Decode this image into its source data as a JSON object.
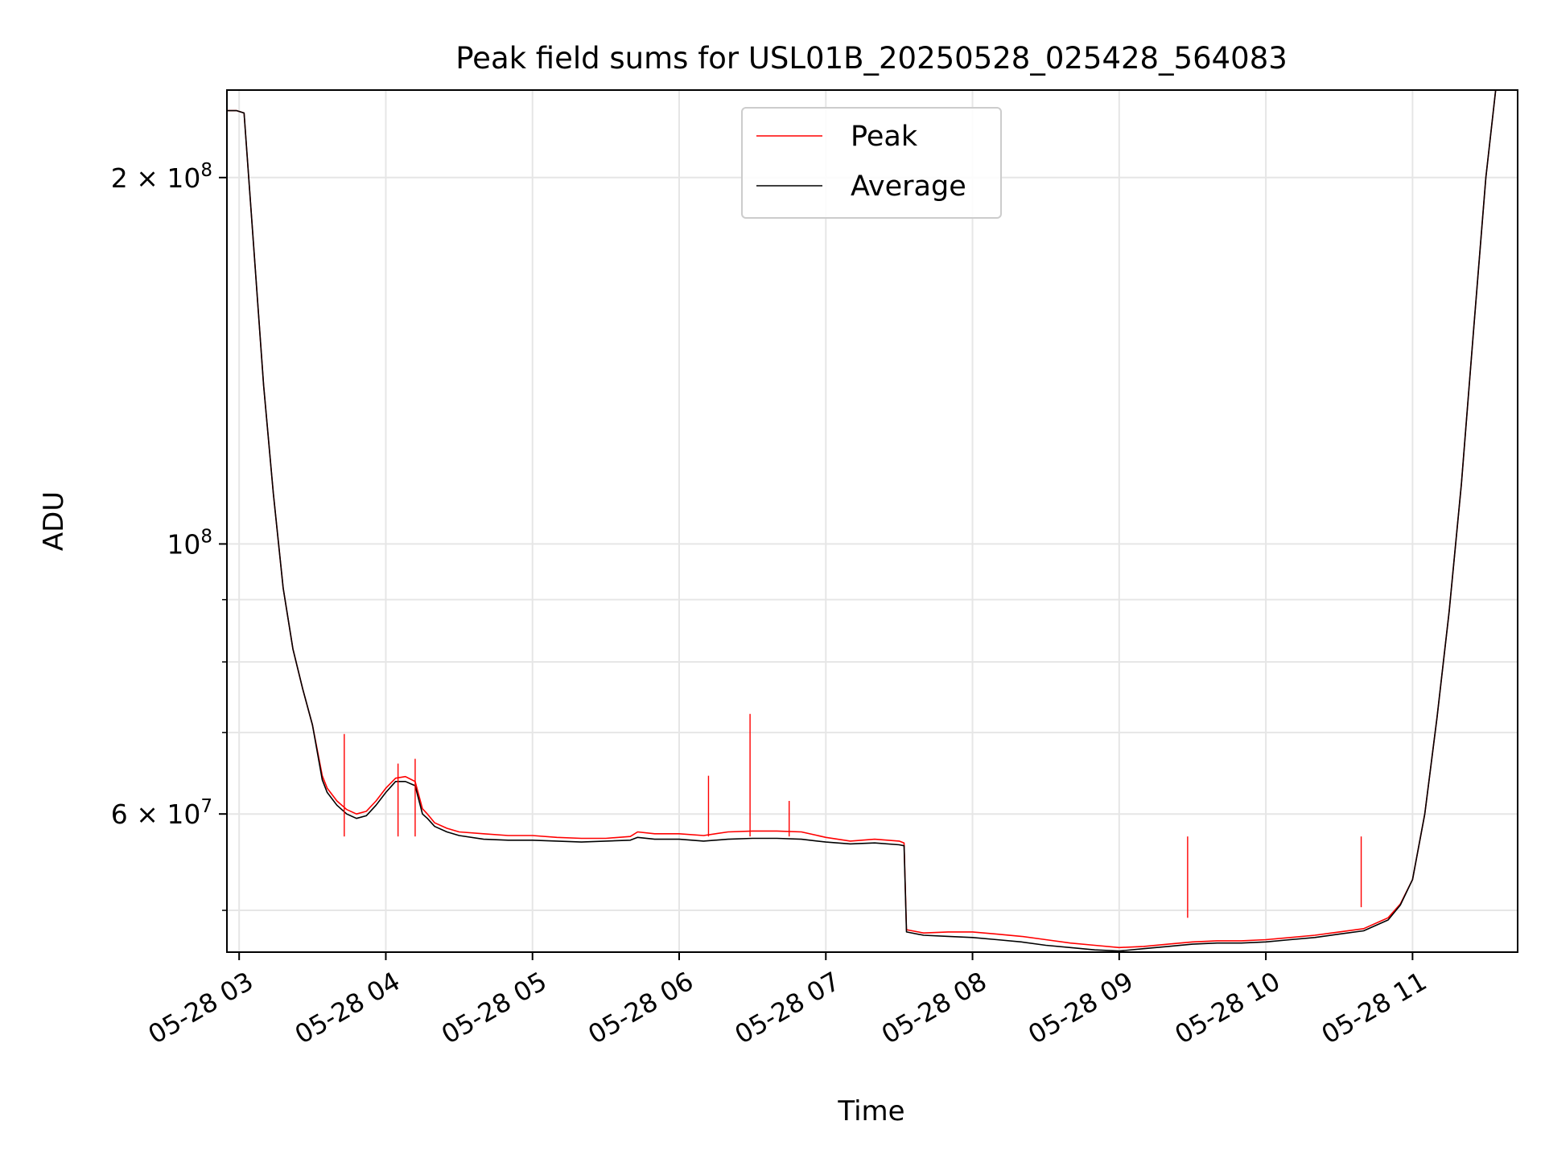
{
  "chart_data": {
    "type": "line",
    "title": "Peak field sums for USL01B_20250528_025428_564083",
    "xlabel": "Time",
    "ylabel": "ADU",
    "y_scale": "log",
    "grid": true,
    "legend_position": "upper center",
    "xlim": [
      "2025-05-28T02:55",
      "2025-05-28T11:43"
    ],
    "ylim": [
      46200000,
      236000000
    ],
    "x_ticks": [
      {
        "value": "2025-05-28T03:00",
        "label": "05-28 03"
      },
      {
        "value": "2025-05-28T04:00",
        "label": "05-28 04"
      },
      {
        "value": "2025-05-28T05:00",
        "label": "05-28 05"
      },
      {
        "value": "2025-05-28T06:00",
        "label": "05-28 06"
      },
      {
        "value": "2025-05-28T07:00",
        "label": "05-28 07"
      },
      {
        "value": "2025-05-28T08:00",
        "label": "05-28 08"
      },
      {
        "value": "2025-05-28T09:00",
        "label": "05-28 09"
      },
      {
        "value": "2025-05-28T10:00",
        "label": "05-28 10"
      },
      {
        "value": "2025-05-28T11:00",
        "label": "05-28 11"
      }
    ],
    "y_ticks": [
      {
        "value": 200000000,
        "mantissa": "2",
        "times": "×",
        "base": "10",
        "exp": "8"
      },
      {
        "value": 100000000,
        "mantissa": "",
        "times": "",
        "base": "10",
        "exp": "8"
      },
      {
        "value": 60000000,
        "mantissa": "6",
        "times": "×",
        "base": "10",
        "exp": "7"
      }
    ],
    "y_minor_ticks": [
      50000000,
      70000000,
      80000000,
      90000000
    ],
    "series": [
      {
        "name": "Peak",
        "color": "#ff0000",
        "x": [
          "2025-05-28T02:55",
          "2025-05-28T02:59",
          "2025-05-28T03:02",
          "2025-05-28T03:06",
          "2025-05-28T03:10",
          "2025-05-28T03:14",
          "2025-05-28T03:18",
          "2025-05-28T03:22",
          "2025-05-28T03:26",
          "2025-05-28T03:30",
          "2025-05-28T03:34",
          "2025-05-28T03:36",
          "2025-05-28T03:40",
          "2025-05-28T03:44",
          "2025-05-28T03:48",
          "2025-05-28T03:52",
          "2025-05-28T03:56",
          "2025-05-28T04:00",
          "2025-05-28T04:04",
          "2025-05-28T04:08",
          "2025-05-28T04:12",
          "2025-05-28T04:15",
          "2025-05-28T04:17",
          "2025-05-28T04:20",
          "2025-05-28T04:25",
          "2025-05-28T04:30",
          "2025-05-28T04:40",
          "2025-05-28T04:50",
          "2025-05-28T05:00",
          "2025-05-28T05:10",
          "2025-05-28T05:20",
          "2025-05-28T05:30",
          "2025-05-28T05:40",
          "2025-05-28T05:43",
          "2025-05-28T05:50",
          "2025-05-28T06:00",
          "2025-05-28T06:10",
          "2025-05-28T06:20",
          "2025-05-28T06:30",
          "2025-05-28T06:40",
          "2025-05-28T06:50",
          "2025-05-28T07:00",
          "2025-05-28T07:10",
          "2025-05-28T07:20",
          "2025-05-28T07:30",
          "2025-05-28T07:32",
          "2025-05-28T07:33",
          "2025-05-28T07:40",
          "2025-05-28T07:50",
          "2025-05-28T08:00",
          "2025-05-28T08:10",
          "2025-05-28T08:20",
          "2025-05-28T08:30",
          "2025-05-28T08:40",
          "2025-05-28T08:50",
          "2025-05-28T09:00",
          "2025-05-28T09:10",
          "2025-05-28T09:20",
          "2025-05-28T09:30",
          "2025-05-28T09:40",
          "2025-05-28T09:50",
          "2025-05-28T10:00",
          "2025-05-28T10:10",
          "2025-05-28T10:20",
          "2025-05-28T10:30",
          "2025-05-28T10:40",
          "2025-05-28T10:50",
          "2025-05-28T10:55",
          "2025-05-28T11:00",
          "2025-05-28T11:05",
          "2025-05-28T11:10",
          "2025-05-28T11:15",
          "2025-05-28T11:20",
          "2025-05-28T11:25",
          "2025-05-28T11:30",
          "2025-05-28T11:34"
        ],
        "y": [
          227000000,
          227000000,
          226000000,
          175000000,
          135000000,
          110000000,
          92000000,
          82000000,
          76000000,
          71000000,
          64500000,
          63000000,
          61500000,
          60500000,
          60000000,
          60300000,
          61500000,
          63000000,
          64200000,
          64400000,
          63800000,
          60600000,
          60000000,
          59000000,
          58400000,
          58000000,
          57800000,
          57600000,
          57600000,
          57400000,
          57300000,
          57300000,
          57500000,
          58000000,
          57800000,
          57800000,
          57600000,
          58000000,
          58100000,
          58100000,
          58000000,
          57400000,
          57000000,
          57200000,
          57000000,
          56800000,
          48200000,
          47900000,
          48000000,
          48000000,
          47800000,
          47600000,
          47300000,
          47000000,
          46800000,
          46600000,
          46700000,
          46900000,
          47100000,
          47200000,
          47200000,
          47300000,
          47500000,
          47700000,
          48000000,
          48300000,
          49300000,
          50600000,
          53000000,
          60000000,
          72000000,
          88000000,
          112000000,
          150000000,
          200000000,
          236000000
        ]
      },
      {
        "name": "Average",
        "color": "#000000",
        "x": [
          "2025-05-28T02:55",
          "2025-05-28T02:59",
          "2025-05-28T03:02",
          "2025-05-28T03:06",
          "2025-05-28T03:10",
          "2025-05-28T03:14",
          "2025-05-28T03:18",
          "2025-05-28T03:22",
          "2025-05-28T03:26",
          "2025-05-28T03:30",
          "2025-05-28T03:34",
          "2025-05-28T03:36",
          "2025-05-28T03:40",
          "2025-05-28T03:44",
          "2025-05-28T03:48",
          "2025-05-28T03:52",
          "2025-05-28T03:56",
          "2025-05-28T04:00",
          "2025-05-28T04:04",
          "2025-05-28T04:08",
          "2025-05-28T04:12",
          "2025-05-28T04:15",
          "2025-05-28T04:17",
          "2025-05-28T04:20",
          "2025-05-28T04:25",
          "2025-05-28T04:30",
          "2025-05-28T04:40",
          "2025-05-28T04:50",
          "2025-05-28T05:00",
          "2025-05-28T05:10",
          "2025-05-28T05:20",
          "2025-05-28T05:30",
          "2025-05-28T05:40",
          "2025-05-28T05:43",
          "2025-05-28T05:50",
          "2025-05-28T06:00",
          "2025-05-28T06:10",
          "2025-05-28T06:20",
          "2025-05-28T06:30",
          "2025-05-28T06:40",
          "2025-05-28T06:50",
          "2025-05-28T07:00",
          "2025-05-28T07:10",
          "2025-05-28T07:20",
          "2025-05-28T07:30",
          "2025-05-28T07:32",
          "2025-05-28T07:33",
          "2025-05-28T07:40",
          "2025-05-28T07:50",
          "2025-05-28T08:00",
          "2025-05-28T08:10",
          "2025-05-28T08:20",
          "2025-05-28T08:30",
          "2025-05-28T08:40",
          "2025-05-28T08:50",
          "2025-05-28T09:00",
          "2025-05-28T09:10",
          "2025-05-28T09:20",
          "2025-05-28T09:30",
          "2025-05-28T09:40",
          "2025-05-28T09:50",
          "2025-05-28T10:00",
          "2025-05-28T10:10",
          "2025-05-28T10:20",
          "2025-05-28T10:30",
          "2025-05-28T10:40",
          "2025-05-28T10:50",
          "2025-05-28T10:55",
          "2025-05-28T11:00",
          "2025-05-28T11:05",
          "2025-05-28T11:10",
          "2025-05-28T11:15",
          "2025-05-28T11:20",
          "2025-05-28T11:25",
          "2025-05-28T11:30",
          "2025-05-28T11:34"
        ],
        "y": [
          227000000,
          227000000,
          226000000,
          175000000,
          135000000,
          110000000,
          92000000,
          82000000,
          76000000,
          71000000,
          64000000,
          62500000,
          61000000,
          60000000,
          59500000,
          59800000,
          61000000,
          62500000,
          63800000,
          63800000,
          63300000,
          60000000,
          59500000,
          58600000,
          58000000,
          57600000,
          57200000,
          57100000,
          57100000,
          57000000,
          56900000,
          57000000,
          57100000,
          57400000,
          57200000,
          57200000,
          57000000,
          57200000,
          57300000,
          57300000,
          57200000,
          56900000,
          56700000,
          56800000,
          56600000,
          56500000,
          48000000,
          47700000,
          47600000,
          47500000,
          47300000,
          47100000,
          46800000,
          46600000,
          46400000,
          46300000,
          46500000,
          46700000,
          46900000,
          47000000,
          47000000,
          47100000,
          47300000,
          47500000,
          47800000,
          48100000,
          49100000,
          50500000,
          53000000,
          60000000,
          72000000,
          88000000,
          112000000,
          150000000,
          200000000,
          236000000
        ]
      }
    ],
    "annotations": [
      {
        "series": "Peak",
        "note": "spikes",
        "points": [
          {
            "x": "2025-05-28T03:43",
            "y": 69800000
          },
          {
            "x": "2025-05-28T04:05",
            "y": 66000000
          },
          {
            "x": "2025-05-28T04:12",
            "y": 66600000
          },
          {
            "x": "2025-05-28T06:12",
            "y": 64500000
          },
          {
            "x": "2025-05-28T06:29",
            "y": 72500000
          },
          {
            "x": "2025-05-28T06:45",
            "y": 61500000
          },
          {
            "x": "2025-05-28T09:28",
            "y": 49300000
          },
          {
            "x": "2025-05-28T10:39",
            "y": 50300000
          }
        ]
      }
    ]
  }
}
